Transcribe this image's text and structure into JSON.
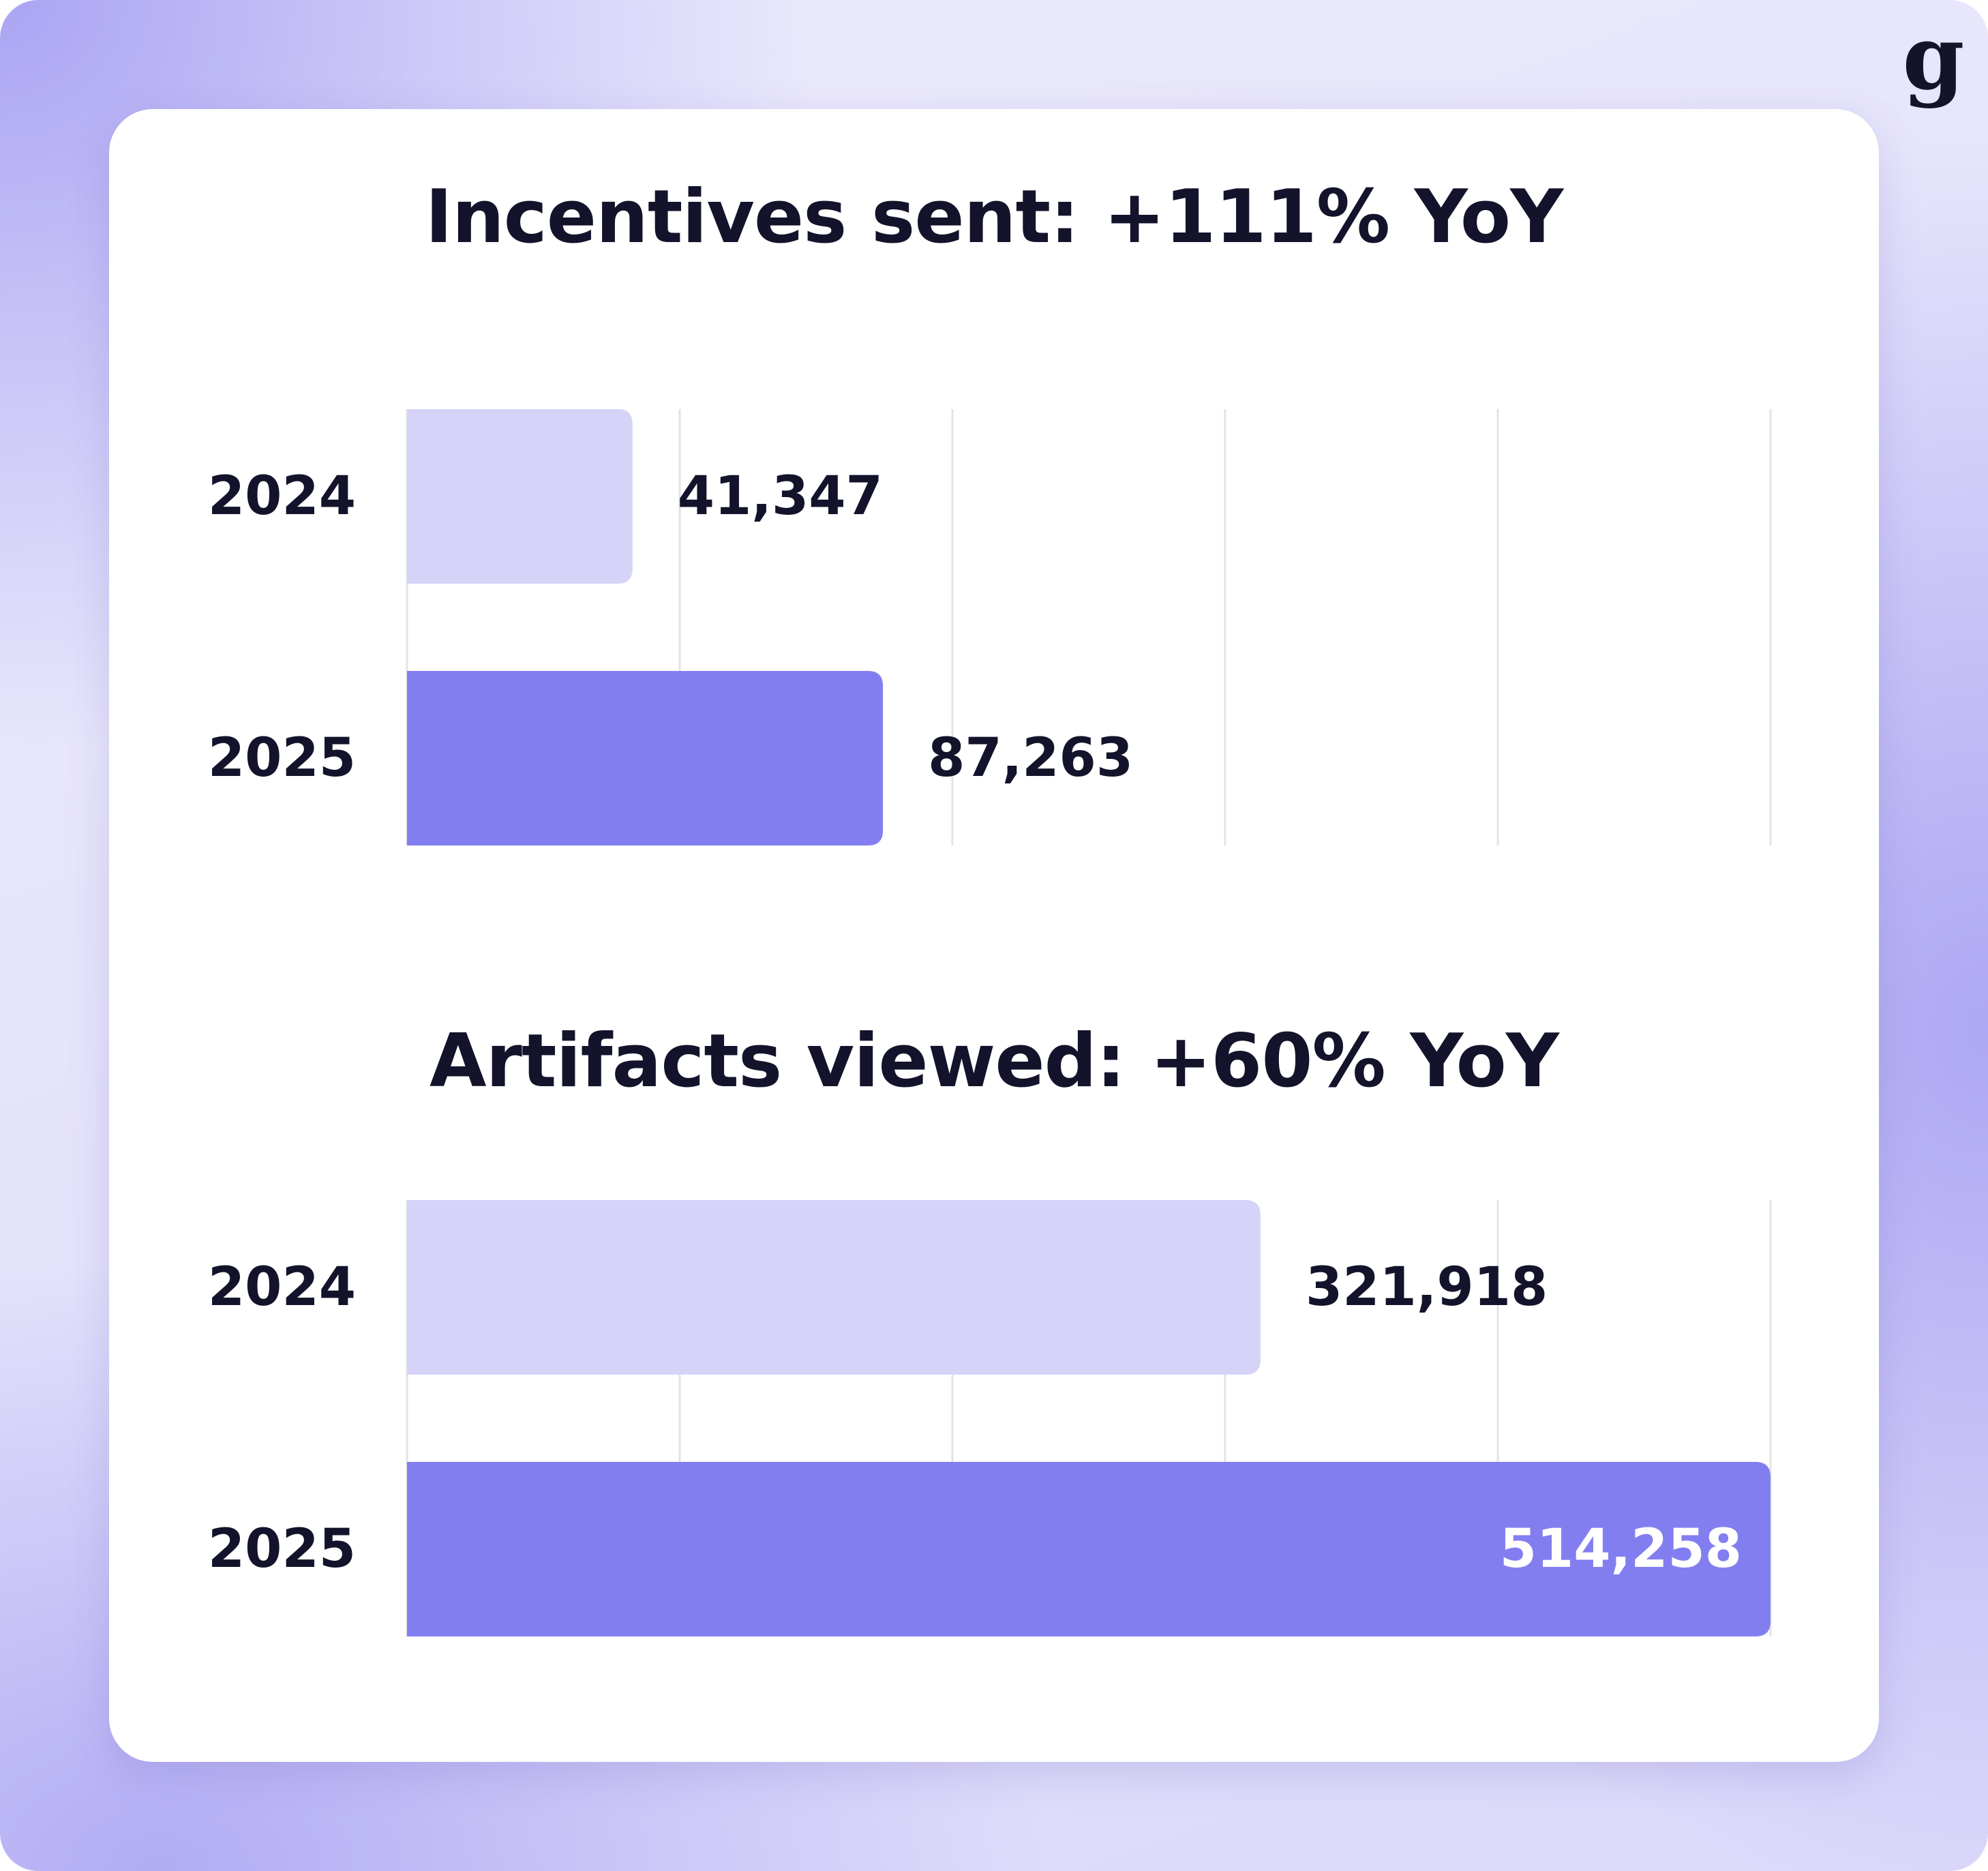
{
  "colors": {
    "bar_2024": "#d6d3f8",
    "bar_2025": "#837ef0",
    "text_dark": "#13132b",
    "text_light": "#ffffff",
    "grid": "#e3e3e8"
  },
  "logo": {
    "glyph": "g",
    "icon": "g-logo-icon"
  },
  "chart_data": [
    {
      "type": "bar",
      "orientation": "horizontal",
      "title": "Incentives sent: +111% YoY",
      "categories": [
        "2024",
        "2025"
      ],
      "values": [
        41347,
        87263
      ],
      "value_labels": [
        "41,347",
        "87,263"
      ],
      "xlim": [
        0,
        250000
      ],
      "grid": true,
      "label_inside": [
        false,
        false
      ]
    },
    {
      "type": "bar",
      "orientation": "horizontal",
      "title": "Artifacts viewed: +60% YoY",
      "categories": [
        "2024",
        "2025"
      ],
      "values": [
        321918,
        514258
      ],
      "value_labels": [
        "321,918",
        "514,258"
      ],
      "xlim": [
        0,
        514258
      ],
      "grid": true,
      "label_inside": [
        false,
        true
      ]
    }
  ]
}
